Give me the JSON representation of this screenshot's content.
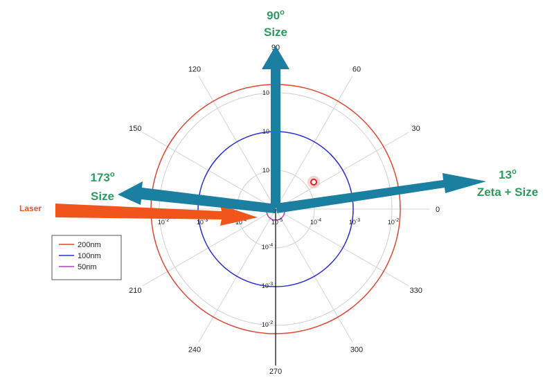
{
  "annotations": {
    "top": {
      "angle": "90",
      "deg": "o",
      "label": "Size"
    },
    "left": {
      "angle": "173",
      "deg": "o",
      "label": "Size"
    },
    "right": {
      "angle": "13",
      "deg": "o",
      "label": "Zeta + Size"
    },
    "laser": "Laser"
  },
  "angle_labels": [
    "0",
    "30",
    "60",
    "90",
    "120",
    "150",
    "210",
    "240",
    "270",
    "300",
    "330"
  ],
  "radial_labels": {
    "right": [
      {
        "base": "10",
        "exp": "-5"
      },
      {
        "base": "10",
        "exp": "-4"
      },
      {
        "base": "10",
        "exp": "-3"
      },
      {
        "base": "10",
        "exp": "-2"
      }
    ],
    "left": [
      {
        "base": "10",
        "exp": "-4"
      },
      {
        "base": "10",
        "exp": "-3"
      },
      {
        "base": "10",
        "exp": "-2"
      }
    ],
    "down": [
      {
        "base": "10",
        "exp": "-4"
      },
      {
        "base": "10",
        "exp": "-3"
      },
      {
        "base": "10",
        "exp": "-2"
      }
    ],
    "up": [
      "10",
      "10",
      "10"
    ]
  },
  "legend": [
    {
      "name": "200nm",
      "color": "#e2452f"
    },
    {
      "name": "100nm",
      "color": "#2b2fd6"
    },
    {
      "name": "50nm",
      "color": "#b040c0"
    }
  ]
}
